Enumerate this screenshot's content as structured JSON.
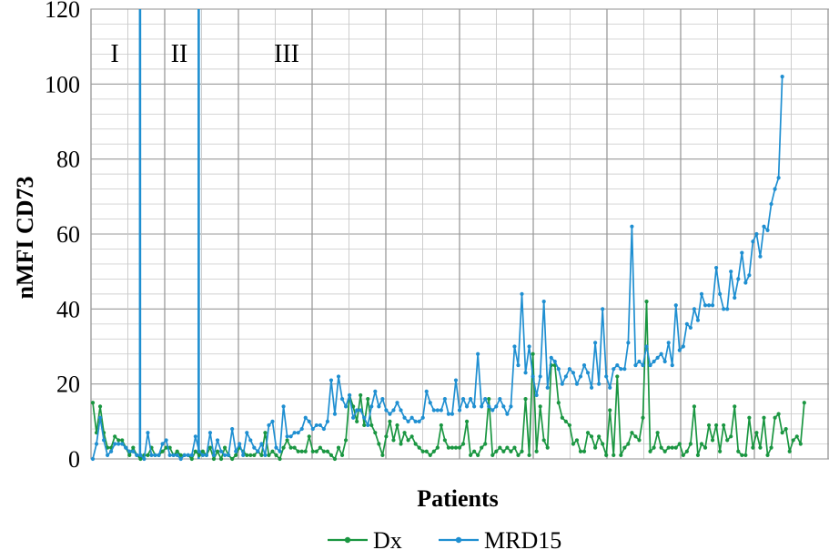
{
  "chart_data": {
    "type": "line",
    "title": "",
    "xlabel": "Patients",
    "ylabel": "nMFI CD73",
    "ylim": [
      0,
      120
    ],
    "yticks": [
      0,
      20,
      40,
      60,
      80,
      100,
      120
    ],
    "grid": true,
    "legend": "bottom",
    "regions": [
      "I",
      "II",
      "III"
    ],
    "region_boundaries_patient_index": [
      13,
      29
    ],
    "series": [
      {
        "name": "Dx",
        "color": "#1a9641",
        "values": [
          15,
          7,
          14,
          7,
          3,
          3,
          6,
          5,
          5,
          3,
          1,
          3,
          1,
          0,
          1,
          1,
          3,
          1,
          1,
          2,
          3,
          3,
          1,
          2,
          1,
          1,
          1,
          0,
          2,
          1,
          2,
          1,
          3,
          0,
          2,
          0,
          3,
          1,
          0,
          1,
          3,
          2,
          1,
          1,
          1,
          2,
          1,
          7,
          1,
          2,
          1,
          0,
          3,
          5,
          3,
          3,
          2,
          2,
          2,
          6,
          2,
          2,
          3,
          2,
          2,
          1,
          0,
          3,
          1,
          5,
          17,
          14,
          10,
          17,
          9,
          16,
          9,
          7,
          4,
          1,
          6,
          10,
          5,
          9,
          4,
          7,
          5,
          6,
          4,
          3,
          2,
          2,
          1,
          2,
          3,
          9,
          5,
          3,
          3,
          3,
          3,
          4,
          10,
          1,
          2,
          1,
          3,
          4,
          16,
          1,
          2,
          3,
          2,
          3,
          2,
          3,
          1,
          2,
          16,
          1,
          28,
          2,
          14,
          5,
          3,
          25,
          25,
          15,
          11,
          10,
          9,
          4,
          5,
          2,
          2,
          7,
          6,
          3,
          6,
          4,
          1,
          13,
          1,
          22,
          1,
          3,
          4,
          7,
          6,
          5,
          11,
          42,
          2,
          3,
          7,
          3,
          2,
          3,
          3,
          3,
          4,
          1,
          2,
          4,
          14,
          1,
          4,
          3,
          9,
          5,
          9,
          2,
          9,
          5,
          6,
          14,
          2,
          1,
          1,
          11,
          3,
          7,
          3,
          11,
          1,
          3,
          11,
          12,
          7,
          8,
          2,
          5,
          6,
          4,
          15
        ],
        "unlabeled_x": true
      },
      {
        "name": "MRD15",
        "color": "#1f8fd1",
        "values": [
          0,
          4,
          11,
          5,
          1,
          2,
          4,
          4,
          4,
          3,
          2,
          2,
          1,
          1,
          0,
          7,
          1,
          1,
          1,
          4,
          5,
          1,
          1,
          1,
          0,
          1,
          1,
          1,
          6,
          2,
          1,
          1,
          7,
          1,
          5,
          2,
          1,
          1,
          8,
          2,
          4,
          1,
          7,
          5,
          3,
          2,
          4,
          1,
          9,
          10,
          3,
          2,
          14,
          6,
          6,
          7,
          7,
          8,
          11,
          10,
          8,
          9,
          9,
          8,
          10,
          21,
          12,
          22,
          16,
          14,
          17,
          11,
          13,
          13,
          11,
          9,
          14,
          18,
          14,
          16,
          13,
          12,
          13,
          15,
          13,
          11,
          10,
          11,
          10,
          10,
          11,
          18,
          15,
          13,
          13,
          13,
          16,
          12,
          12,
          21,
          13,
          16,
          14,
          16,
          14,
          28,
          14,
          16,
          14,
          13,
          14,
          16,
          14,
          12,
          14,
          30,
          25,
          44,
          23,
          30,
          22,
          17,
          22,
          42,
          19,
          27,
          26,
          24,
          20,
          22,
          24,
          23,
          20,
          22,
          25,
          23,
          19,
          31,
          20,
          40,
          22,
          19,
          24,
          25,
          24,
          24,
          31,
          62,
          25,
          26,
          25,
          30,
          25,
          26,
          27,
          28,
          26,
          31,
          25,
          41,
          29,
          30,
          36,
          35,
          40,
          37,
          44,
          41,
          41,
          41,
          51,
          44,
          40,
          40,
          50,
          43,
          48,
          55,
          47,
          49,
          58,
          60,
          54,
          62,
          61,
          68,
          72,
          75,
          102
        ]
      }
    ]
  }
}
